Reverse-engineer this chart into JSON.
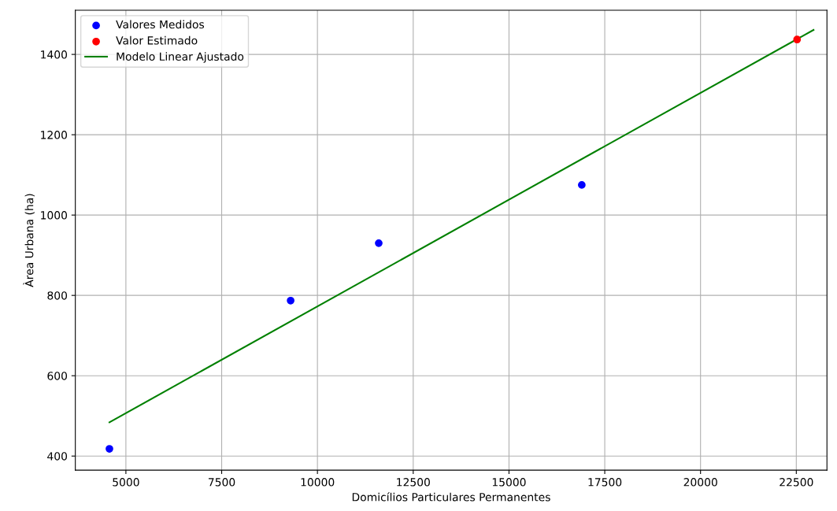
{
  "chart_data": {
    "type": "scatter",
    "xlabel": "Domicílios Particulares Permanentes",
    "ylabel": "Àrea Urbana (ha)",
    "series": [
      {
        "name": "Valores Medidos",
        "marker": "circle",
        "color": "#0000ff",
        "x": [
          4570,
          9300,
          11600,
          16900
        ],
        "values": [
          418,
          787,
          930,
          1075
        ]
      },
      {
        "name": "Valor Estimado",
        "marker": "circle",
        "color": "#ff0000",
        "x": [
          22520
        ],
        "values": [
          1437
        ]
      },
      {
        "name": "Modelo Linear Ajustado",
        "type": "line",
        "color": "#008000",
        "x": [
          4570,
          22950
        ],
        "values": [
          484,
          1461
        ]
      }
    ],
    "xlim": [
      3680,
      23300
    ],
    "ylim": [
      365,
      1510
    ],
    "xticks": [
      5000,
      7500,
      10000,
      12500,
      15000,
      17500,
      20000,
      22500
    ],
    "yticks": [
      400,
      600,
      800,
      1000,
      1200,
      1400
    ],
    "grid": true,
    "legend": "top left"
  }
}
